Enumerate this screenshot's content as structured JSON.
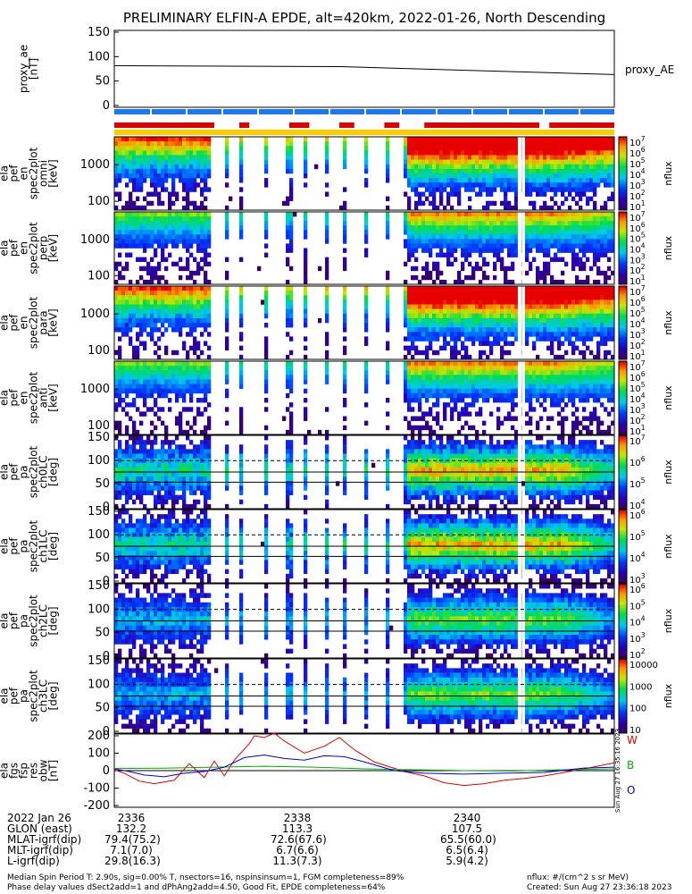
{
  "title": "PRELIMINARY ELFIN-A EPDE, alt=420km, 2022-01-26, North Descending",
  "chart_data": {
    "type": "heatmap",
    "time_ticks": [
      "2336",
      "2338",
      "2340"
    ],
    "time_range_sec": [
      2335.1,
      2341.1
    ],
    "panels": [
      {
        "id": "proxy-ae",
        "ylabel": [
          "proxy_ae",
          "[nT]"
        ],
        "yticks": [
          "150",
          "100",
          "50",
          "0"
        ],
        "ylim": [
          0,
          150
        ],
        "right_label": "proxy_AE",
        "line": [
          [
            0,
            82
          ],
          [
            0.45,
            80
          ],
          [
            1,
            62
          ]
        ]
      },
      {
        "id": "pef-en-omni",
        "ylabel": [
          "ela",
          "pef",
          "en",
          "spec2plot",
          "omni",
          "[keV]"
        ],
        "yticks": [
          "1000",
          "100"
        ],
        "colorbar": {
          "label": "nflux",
          "ticks": [
            "10^7",
            "10^6",
            "10^5",
            "10^4",
            "10^3",
            "10^2",
            "10^1"
          ]
        }
      },
      {
        "id": "pef-en-perp",
        "ylabel": [
          "ela",
          "pef",
          "en",
          "spec2plot",
          "perp",
          "[keV]"
        ],
        "yticks": [
          "1000",
          "100"
        ],
        "colorbar": {
          "label": "nflux",
          "ticks": [
            "10^7",
            "10^6",
            "10^5",
            "10^4",
            "10^3",
            "10^2",
            "10^1"
          ]
        }
      },
      {
        "id": "pef-en-para",
        "ylabel": [
          "ela",
          "pef",
          "en",
          "spec2plot",
          "para",
          "[keV]"
        ],
        "yticks": [
          "1000",
          "100"
        ],
        "colorbar": {
          "label": "nflux",
          "ticks": [
            "10^7",
            "10^6",
            "10^5",
            "10^4",
            "10^3",
            "10^2",
            "10^1"
          ]
        }
      },
      {
        "id": "pef-en-anti",
        "ylabel": [
          "ela",
          "pef",
          "en",
          "spec2plot",
          "anti",
          "[keV]"
        ],
        "yticks": [
          "1000",
          "100"
        ],
        "colorbar": {
          "label": "nflux",
          "ticks": [
            "10^7",
            "10^6",
            "10^5",
            "10^4",
            "10^3",
            "10^2",
            "10^1"
          ]
        }
      },
      {
        "id": "pef-pa-ch0LC",
        "ylabel": [
          "ela",
          "pef",
          "pa",
          "spec2plot",
          "ch0LC",
          "[deg]"
        ],
        "yticks": [
          "150",
          "100",
          "50",
          "0"
        ],
        "colorbar": {
          "label": "nflux",
          "ticks": [
            "10^7",
            "10^6",
            "10^5",
            "10^4"
          ]
        }
      },
      {
        "id": "pef-pa-ch1LC",
        "ylabel": [
          "ela",
          "pef",
          "pa",
          "spec2plot",
          "ch1LC",
          "[deg]"
        ],
        "yticks": [
          "150",
          "100",
          "50",
          "0"
        ],
        "colorbar": {
          "label": "nflux",
          "ticks": [
            "10^6",
            "10^5",
            "10^4",
            "10^3"
          ]
        }
      },
      {
        "id": "pef-pa-ch2LC",
        "ylabel": [
          "ela",
          "pef",
          "pa",
          "spec2plot",
          "ch2LC",
          "[deg]"
        ],
        "yticks": [
          "150",
          "100",
          "50",
          "0"
        ],
        "colorbar": {
          "label": "nflux",
          "ticks": [
            "10^6",
            "10^5",
            "10^4",
            "10^3",
            "10^2"
          ]
        }
      },
      {
        "id": "pef-pa-ch3LC",
        "ylabel": [
          "ela",
          "pef",
          "pa",
          "spec2plot",
          "ch3LC",
          "[deg]"
        ],
        "yticks": [
          "150",
          "100",
          "50",
          "0"
        ],
        "colorbar": {
          "label": "nflux",
          "ticks": [
            "10000",
            "1000",
            "100",
            "10"
          ]
        }
      },
      {
        "id": "fgs-res",
        "ylabel": [
          "ela",
          "fgs",
          "fsp",
          "res",
          "obw",
          "[nT]"
        ],
        "yticks": [
          "200",
          "100",
          "0",
          "-100",
          "-200"
        ],
        "ylim": [
          -200,
          200
        ],
        "series": [
          {
            "name": "W",
            "color": "#e00000",
            "values": [
              [
                0,
                5
              ],
              [
                0.02,
                -15
              ],
              [
                0.05,
                -60
              ],
              [
                0.08,
                -75
              ],
              [
                0.12,
                -55
              ],
              [
                0.15,
                40
              ],
              [
                0.18,
                -40
              ],
              [
                0.2,
                55
              ],
              [
                0.22,
                -30
              ],
              [
                0.24,
                60
              ],
              [
                0.27,
                155
              ],
              [
                0.28,
                200
              ],
              [
                0.3,
                190
              ],
              [
                0.32,
                215
              ],
              [
                0.34,
                170
              ],
              [
                0.38,
                100
              ],
              [
                0.42,
                140
              ],
              [
                0.45,
                190
              ],
              [
                0.48,
                120
              ],
              [
                0.52,
                50
              ],
              [
                0.58,
                -5
              ],
              [
                0.62,
                -30
              ],
              [
                0.66,
                -70
              ],
              [
                0.7,
                -85
              ],
              [
                0.74,
                -75
              ],
              [
                0.78,
                -55
              ],
              [
                0.82,
                -45
              ],
              [
                0.86,
                -30
              ],
              [
                0.9,
                -10
              ],
              [
                0.94,
                10
              ],
              [
                1,
                45
              ]
            ]
          },
          {
            "name": "B",
            "color": "#00b000",
            "values": [
              [
                0,
                12
              ],
              [
                0.1,
                14
              ],
              [
                0.2,
                20
              ],
              [
                0.3,
                25
              ],
              [
                0.4,
                20
              ],
              [
                0.5,
                10
              ],
              [
                0.6,
                5
              ],
              [
                0.7,
                0
              ],
              [
                0.8,
                -2
              ],
              [
                0.9,
                5
              ],
              [
                1,
                10
              ]
            ]
          },
          {
            "name": "O",
            "color": "#0000d0",
            "values": [
              [
                0,
                10
              ],
              [
                0.03,
                -5
              ],
              [
                0.06,
                -25
              ],
              [
                0.1,
                -35
              ],
              [
                0.14,
                -15
              ],
              [
                0.18,
                -5
              ],
              [
                0.22,
                20
              ],
              [
                0.26,
                75
              ],
              [
                0.3,
                90
              ],
              [
                0.34,
                70
              ],
              [
                0.38,
                60
              ],
              [
                0.42,
                85
              ],
              [
                0.46,
                80
              ],
              [
                0.5,
                50
              ],
              [
                0.56,
                0
              ],
              [
                0.62,
                -15
              ],
              [
                0.7,
                -20
              ],
              [
                0.78,
                -15
              ],
              [
                0.86,
                -10
              ],
              [
                0.94,
                15
              ],
              [
                1,
                20
              ]
            ]
          }
        ],
        "right_stamp": "Sun Aug 27 16:35:16 2023"
      }
    ],
    "top_bars": {
      "blue_row": "#1e78e6",
      "red_row_segments": [
        [
          0.0,
          0.2
        ],
        [
          0.25,
          0.27
        ],
        [
          0.35,
          0.39
        ],
        [
          0.45,
          0.48
        ],
        [
          0.54,
          0.57
        ],
        [
          0.62,
          0.85
        ],
        [
          0.87,
          1.0
        ]
      ],
      "red_color": "#e00000",
      "yellow_row": "#ffcc00"
    }
  },
  "ephemeris": {
    "rows": [
      {
        "label": "2022 Jan 26",
        "values": [
          "2336",
          "2338",
          "2340"
        ]
      },
      {
        "label": "GLON (east)",
        "values": [
          "132.2",
          "113.3",
          "107.5"
        ]
      },
      {
        "label": "MLAT-igrf(dip)",
        "values": [
          "79.4(75.2)",
          "72.6(67.6)",
          "65.5(60.0)"
        ]
      },
      {
        "label": "MLT-igrf(dip)",
        "values": [
          "7.1(7.0)",
          "6.7(6.6)",
          "6.5(6.4)"
        ]
      },
      {
        "label": "L-igrf(dip)",
        "values": [
          "29.8(16.3)",
          "11.3(7.3)",
          "5.9(4.2)"
        ]
      }
    ]
  },
  "footer": {
    "line1": "Median Spin Period T: 2.90s, sig=0.00% T, nsectors=16, nspinsinsum=1, FGM completeness=89%",
    "line2": "Phase delay values dSect2add=1 and dPhAng2add=4.50, Good Fit, EPDE completeness=64%",
    "units": "nflux: #/(cm^2 s sr MeV)",
    "created": "Created: Sun Aug 27 23:36:18 2023"
  }
}
